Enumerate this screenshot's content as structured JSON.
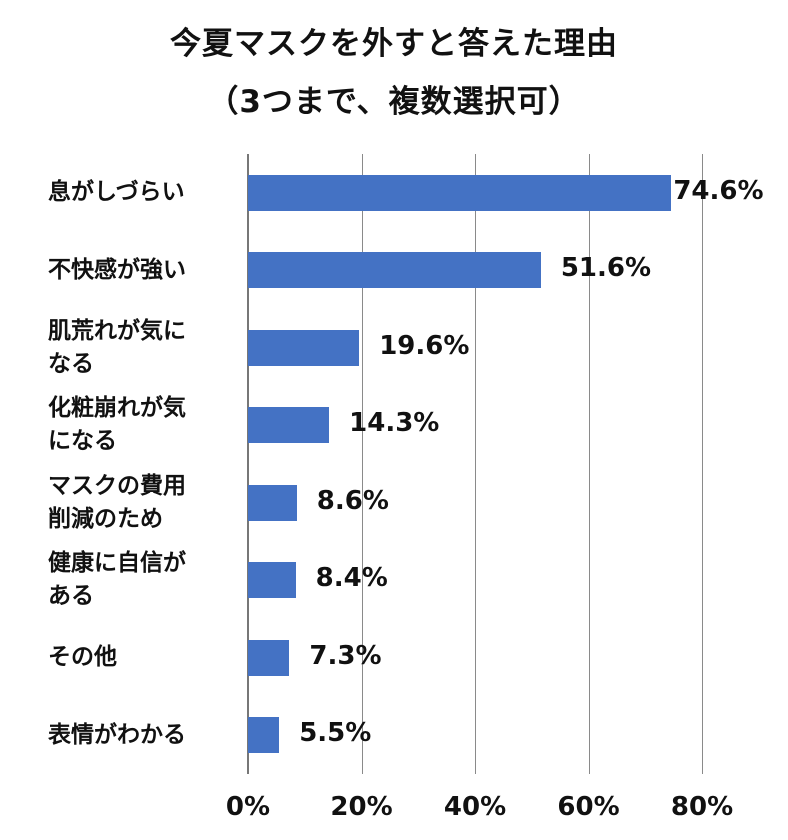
{
  "chart_data": {
    "type": "bar",
    "orientation": "horizontal",
    "title": [
      "今夏マスクを外すと答えた理由",
      "（3つまで、複数選択可）"
    ],
    "categories": [
      [
        "息がしづらい"
      ],
      [
        "不快感が強い"
      ],
      [
        "肌荒れが気に",
        "なる"
      ],
      [
        "化粧崩れが気",
        "になる"
      ],
      [
        "マスクの費用",
        "削減のため"
      ],
      [
        "健康に自信が",
        "ある"
      ],
      [
        "その他"
      ],
      [
        "表情がわかる"
      ]
    ],
    "values": [
      74.6,
      51.6,
      19.6,
      14.3,
      8.6,
      8.4,
      7.3,
      5.5
    ],
    "value_labels": [
      "74.6%",
      "51.6%",
      "19.6%",
      "14.3%",
      "8.6%",
      "8.4%",
      "7.3%",
      "5.5%"
    ],
    "xlim": [
      0,
      80
    ],
    "x_ticks": [
      0,
      20,
      40,
      60,
      80
    ],
    "x_tick_labels": [
      "0%",
      "20%",
      "40%",
      "60%",
      "80%"
    ],
    "grid": "vertical",
    "bar_color": "#4472c4"
  }
}
